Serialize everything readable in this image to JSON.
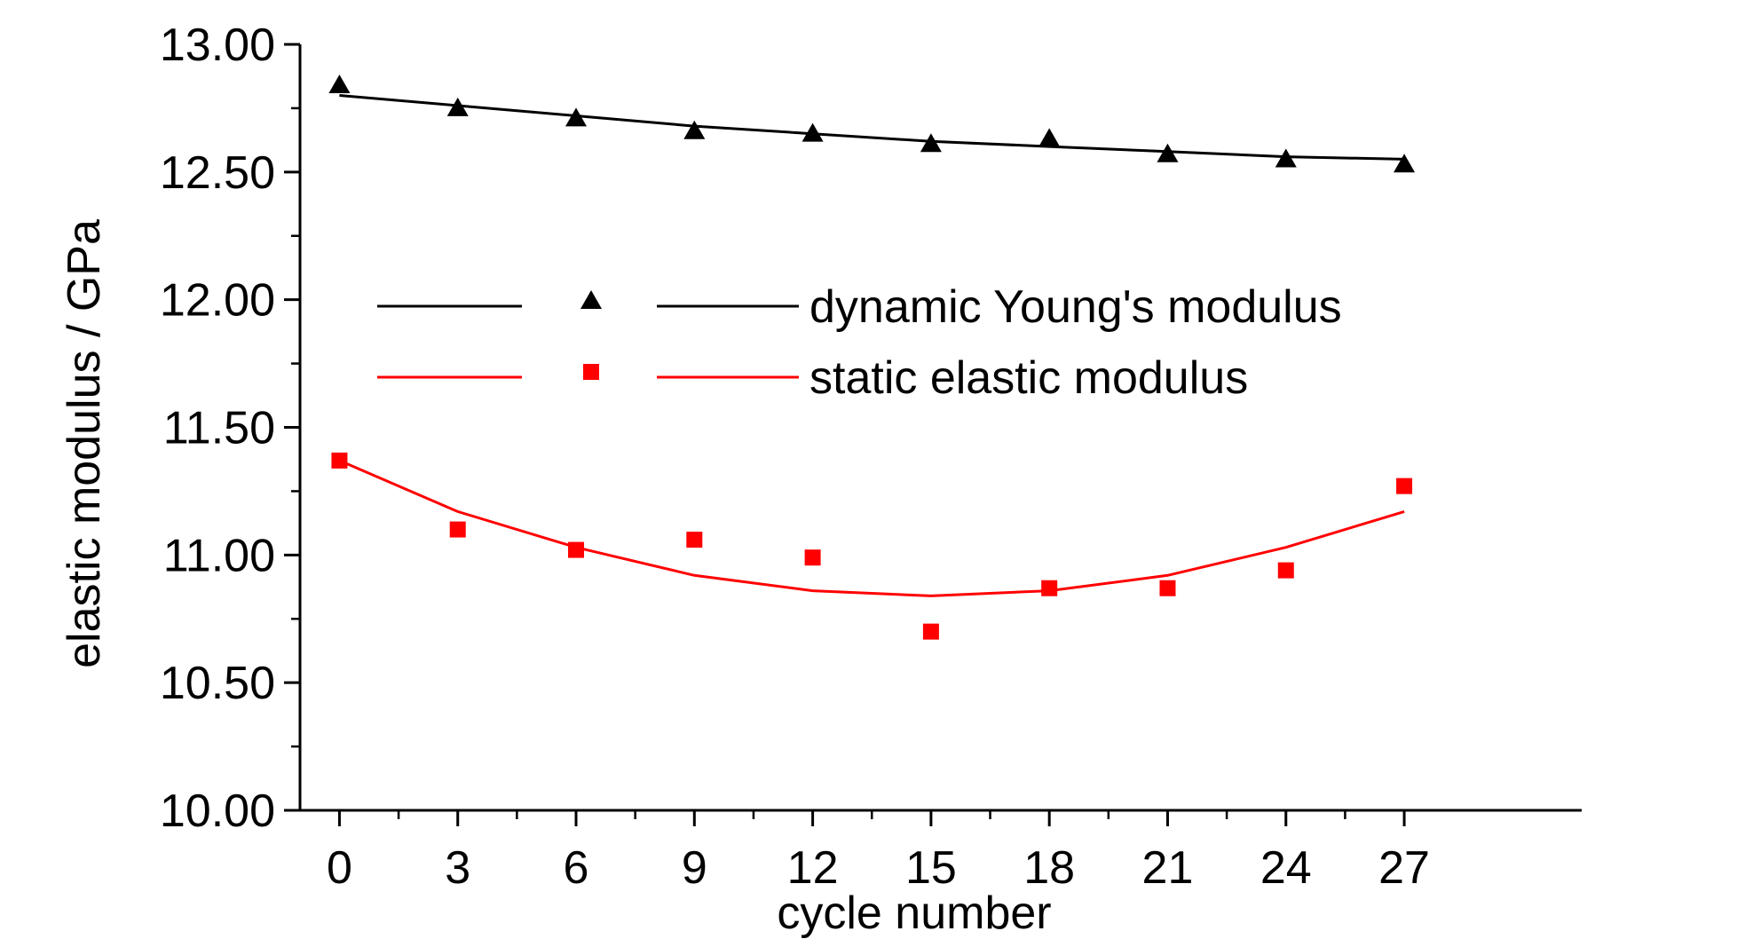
{
  "chart_data": {
    "type": "scatter",
    "xlabel": "cycle number",
    "ylabel": "elastic modulus / GPa",
    "xlim": [
      -1,
      31.5
    ],
    "ylim": [
      10.0,
      13.0
    ],
    "xticks": [
      0,
      3,
      6,
      9,
      12,
      15,
      18,
      21,
      24,
      27
    ],
    "xtick_labels": [
      "0",
      "3",
      "6",
      "9",
      "12",
      "15",
      "18",
      "21",
      "24",
      "27"
    ],
    "yticks": [
      10.0,
      10.5,
      11.0,
      11.5,
      12.0,
      12.5,
      13.0
    ],
    "ytick_labels": [
      "10.00",
      "10.50",
      "11.00",
      "11.50",
      "12.00",
      "12.50",
      "13.00"
    ],
    "grid": false,
    "legend_position": "center-left",
    "series": [
      {
        "name": "dynamic Young's modulus",
        "color": "#000000",
        "marker": "triangle",
        "x": [
          0,
          3,
          6,
          9,
          12,
          15,
          18,
          21,
          24,
          27
        ],
        "y": [
          12.84,
          12.75,
          12.71,
          12.66,
          12.65,
          12.61,
          12.63,
          12.57,
          12.55,
          12.53
        ],
        "fit_y": [
          12.8,
          12.76,
          12.72,
          12.68,
          12.65,
          12.62,
          12.6,
          12.58,
          12.56,
          12.55
        ]
      },
      {
        "name": "static elastic modulus",
        "color": "#ff0000",
        "marker": "square",
        "x": [
          0,
          3,
          6,
          9,
          12,
          15,
          18,
          21,
          24,
          27
        ],
        "y": [
          11.37,
          11.1,
          11.02,
          11.06,
          10.99,
          10.7,
          10.87,
          10.87,
          10.94,
          11.27
        ],
        "fit_y": [
          11.37,
          11.17,
          11.03,
          10.92,
          10.86,
          10.84,
          10.86,
          10.92,
          11.03,
          11.17
        ]
      }
    ]
  }
}
